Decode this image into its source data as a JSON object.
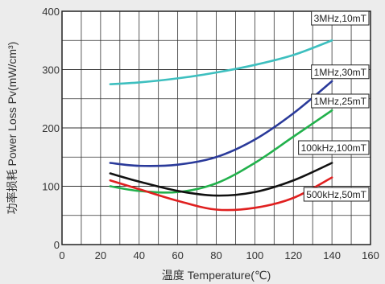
{
  "chart_data": {
    "type": "line",
    "xlabel": "温度  Temperature(℃)",
    "ylabel": "功率损耗  Power Loss Pv(mW/cm³)",
    "xlim": [
      0,
      160
    ],
    "ylim": [
      0,
      400
    ],
    "x_ticks": [
      "0",
      "20",
      "40",
      "60",
      "80",
      "100",
      "120",
      "140",
      "160"
    ],
    "y_ticks": [
      "0",
      "100",
      "200",
      "300",
      "400"
    ],
    "grid": true,
    "series": [
      {
        "name": "3MHz,10mT",
        "color": "#3dbfbf",
        "x": [
          25,
          40,
          60,
          80,
          100,
          120,
          140
        ],
        "y": [
          275,
          278,
          285,
          295,
          308,
          325,
          350
        ]
      },
      {
        "name": "1MHz,30mT",
        "color": "#2a3a9a",
        "x": [
          25,
          40,
          60,
          80,
          100,
          120,
          140
        ],
        "y": [
          140,
          135,
          137,
          150,
          180,
          225,
          280
        ]
      },
      {
        "name": "1MHz,25mT",
        "color": "#22b14c",
        "x": [
          25,
          40,
          60,
          80,
          100,
          120,
          140
        ],
        "y": [
          100,
          92,
          90,
          105,
          140,
          185,
          230
        ]
      },
      {
        "name": "100kHz,100mT",
        "color": "#111111",
        "x": [
          25,
          40,
          60,
          80,
          100,
          120,
          140
        ],
        "y": [
          122,
          108,
          92,
          84,
          90,
          110,
          140
        ]
      },
      {
        "name": "500kHz,50mT",
        "color": "#e02020",
        "x": [
          25,
          40,
          60,
          80,
          100,
          120,
          140
        ],
        "y": [
          110,
          95,
          75,
          60,
          63,
          80,
          115
        ]
      }
    ],
    "annotations": [
      {
        "text": "3MHz,10mT",
        "x": 132,
        "y": 382
      },
      {
        "text": "1MHz,30mT",
        "x": 132,
        "y": 290
      },
      {
        "text": "1MHz,25mT",
        "x": 134,
        "y": 240
      },
      {
        "text": "100kHz,100mT",
        "x": 126,
        "y": 160
      },
      {
        "text": "500kHz,50mT",
        "x": 128,
        "y": 80
      }
    ]
  }
}
